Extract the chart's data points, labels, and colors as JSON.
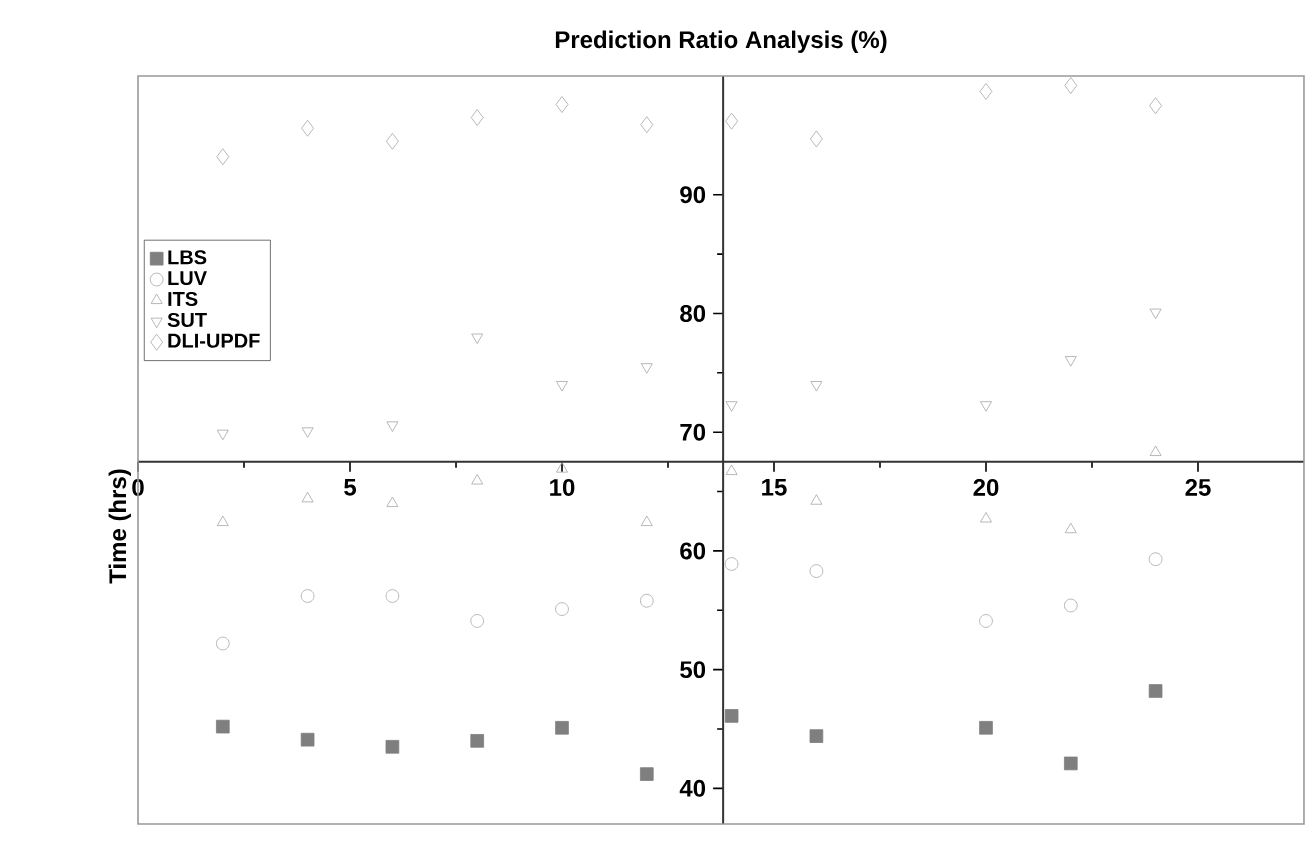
{
  "chart_data": {
    "type": "scatter",
    "title": "Prediction Ratio Analysis (%)",
    "ylabel": "Time (hrs)",
    "x": [
      2,
      4,
      6,
      8,
      10,
      12,
      14,
      16,
      20,
      22,
      24
    ],
    "series": [
      {
        "name": "LBS",
        "color": "#7f7f7f",
        "marker": "square",
        "values": [
          45.2,
          44.1,
          43.5,
          44.0,
          45.1,
          41.2,
          46.1,
          44.4,
          45.1,
          42.1,
          48.2
        ]
      },
      {
        "name": "LUV",
        "color": "#a6a6a6",
        "marker": "circle",
        "values": [
          52.2,
          56.2,
          56.2,
          54.1,
          55.1,
          55.8,
          58.9,
          58.3,
          54.1,
          55.4,
          59.3
        ]
      },
      {
        "name": "ITS",
        "color": "#a6a6a6",
        "marker": "triangle",
        "values": [
          62.4,
          64.4,
          64.0,
          65.9,
          66.9,
          62.4,
          66.7,
          64.2,
          62.7,
          61.8,
          68.3
        ]
      },
      {
        "name": "SUT",
        "color": "#a6a6a6",
        "marker": "triangle-down",
        "values": [
          69.9,
          70.1,
          70.6,
          78.0,
          74.0,
          75.5,
          72.3,
          74.0,
          72.3,
          76.1,
          80.1
        ]
      },
      {
        "name": "DLI-UPDF",
        "color": "#a6a6a6",
        "marker": "diamond",
        "values": [
          93.2,
          95.6,
          94.5,
          96.5,
          97.6,
          95.9,
          96.2,
          94.7,
          98.7,
          99.2,
          97.5
        ]
      }
    ],
    "xlim": [
      0,
      27.5
    ],
    "xticks": [
      0,
      5,
      10,
      15,
      20,
      25
    ],
    "ylim": [
      37,
      100
    ],
    "yticks": [
      40,
      50,
      60,
      70,
      80,
      90
    ],
    "legend": "left",
    "grid": false
  }
}
